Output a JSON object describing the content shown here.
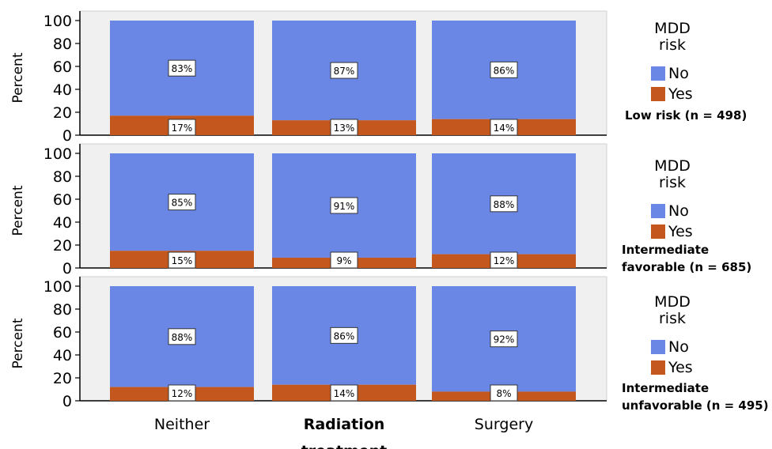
{
  "chart_data": {
    "type": "bar",
    "stacked": true,
    "normalized": true,
    "xlabel": "treatment",
    "ylabel": "Percent",
    "ylim": [
      0,
      100
    ],
    "yticks": [
      0,
      20,
      40,
      60,
      80,
      100
    ],
    "categories": [
      "Neither",
      "Radiation",
      "Surgery"
    ],
    "legend_title": "MDD risk",
    "colors": {
      "No": "#6a87e5",
      "Yes": "#c4571d"
    },
    "panels": [
      {
        "label": "Low risk (n = 498)",
        "series": [
          {
            "name": "No",
            "values": [
              83,
              87,
              86
            ],
            "labels": [
              "83%",
              "87%",
              "86%"
            ]
          },
          {
            "name": "Yes",
            "values": [
              17,
              13,
              14
            ],
            "labels": [
              "17%",
              "13%",
              "14%"
            ]
          }
        ]
      },
      {
        "label": "Intermediate favorable (n = 685)",
        "label_lines": [
          "Intermediate",
          "favorable (n = 685)"
        ],
        "series": [
          {
            "name": "No",
            "values": [
              85,
              91,
              88
            ],
            "labels": [
              "85%",
              "91%",
              "88%"
            ]
          },
          {
            "name": "Yes",
            "values": [
              15,
              9,
              12
            ],
            "labels": [
              "15%",
              "9%",
              "12%"
            ]
          }
        ]
      },
      {
        "label": "Intermediate unfavorable (n = 495)",
        "label_lines": [
          "Intermediate",
          "unfavorable (n = 495)"
        ],
        "series": [
          {
            "name": "No",
            "values": [
              88,
              86,
              92
            ],
            "labels": [
              "88%",
              "86%",
              "92%"
            ]
          },
          {
            "name": "Yes",
            "values": [
              12,
              14,
              8
            ],
            "labels": [
              "12%",
              "14%",
              "8%"
            ]
          }
        ]
      }
    ]
  }
}
